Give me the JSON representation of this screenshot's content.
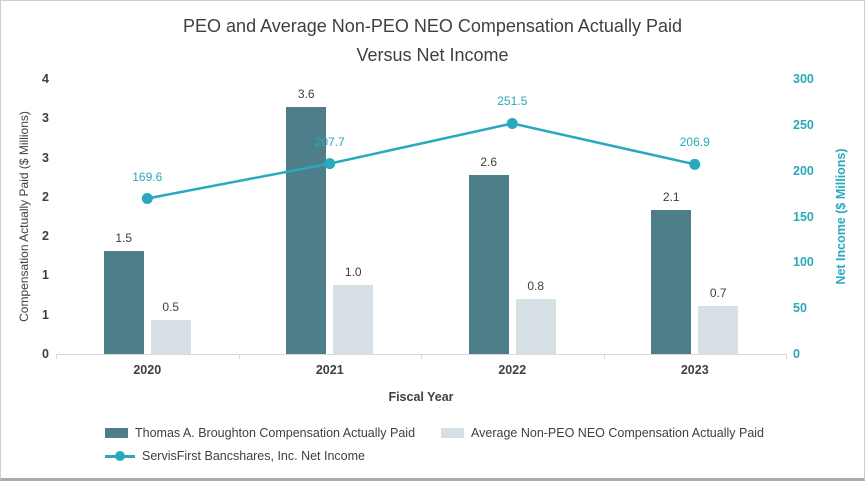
{
  "chart_data": {
    "type": "combo-bar-line",
    "title": "PEO and Average Non-PEO NEO Compensation Actually Paid Versus Net Income",
    "title_lines": [
      "PEO and Average Non-PEO NEO Compensation Actually Paid",
      "Versus Net Income"
    ],
    "categories": [
      "2020",
      "2021",
      "2022",
      "2023"
    ],
    "xlabel": "Fiscal Year",
    "series": [
      {
        "name": "Thomas A. Broughton Compensation Actually Paid",
        "type": "bar",
        "axis": "left",
        "color": "#4e7e89",
        "values": [
          1.5,
          3.6,
          2.6,
          2.1
        ],
        "data_labels": [
          "1.5",
          "3.6",
          "2.6",
          "2.1"
        ]
      },
      {
        "name": "Average Non-PEO NEO Compensation Actually Paid",
        "type": "bar",
        "axis": "left",
        "color": "#d5dfe4",
        "values": [
          0.5,
          1.0,
          0.8,
          0.7
        ],
        "data_labels": [
          "0.5",
          "1.0",
          "0.8",
          "0.7"
        ]
      },
      {
        "name": "ServisFirst Bancshares, Inc. Net Income",
        "type": "line",
        "axis": "right",
        "color": "#29a9bd",
        "values": [
          169.6,
          207.7,
          251.5,
          206.9
        ],
        "data_labels": [
          "169.6",
          "207.7",
          "251.5",
          "206.9"
        ]
      }
    ],
    "left_axis": {
      "title": "Compensation Actually Paid ($ Millions)",
      "min": 0,
      "max": 4,
      "tick_labels": [
        "0",
        "1",
        "1",
        "2",
        "2",
        "3",
        "3",
        "4"
      ]
    },
    "right_axis": {
      "title": "Net Income ($ Millions)",
      "min": 0,
      "max": 300,
      "tick_labels": [
        "0",
        "50",
        "100",
        "150",
        "200",
        "250",
        "300"
      ]
    },
    "grid": false,
    "legend_position": "bottom"
  },
  "colors": {
    "title_text": "#3f3f3f",
    "axis_text": "#404040",
    "secondary_accent": "#29a9bd",
    "axis_line": "#d9d9d9",
    "bar_primary": "#4e7e89",
    "bar_secondary": "#d5dfe4",
    "frame_border": "#cfcfcf"
  }
}
